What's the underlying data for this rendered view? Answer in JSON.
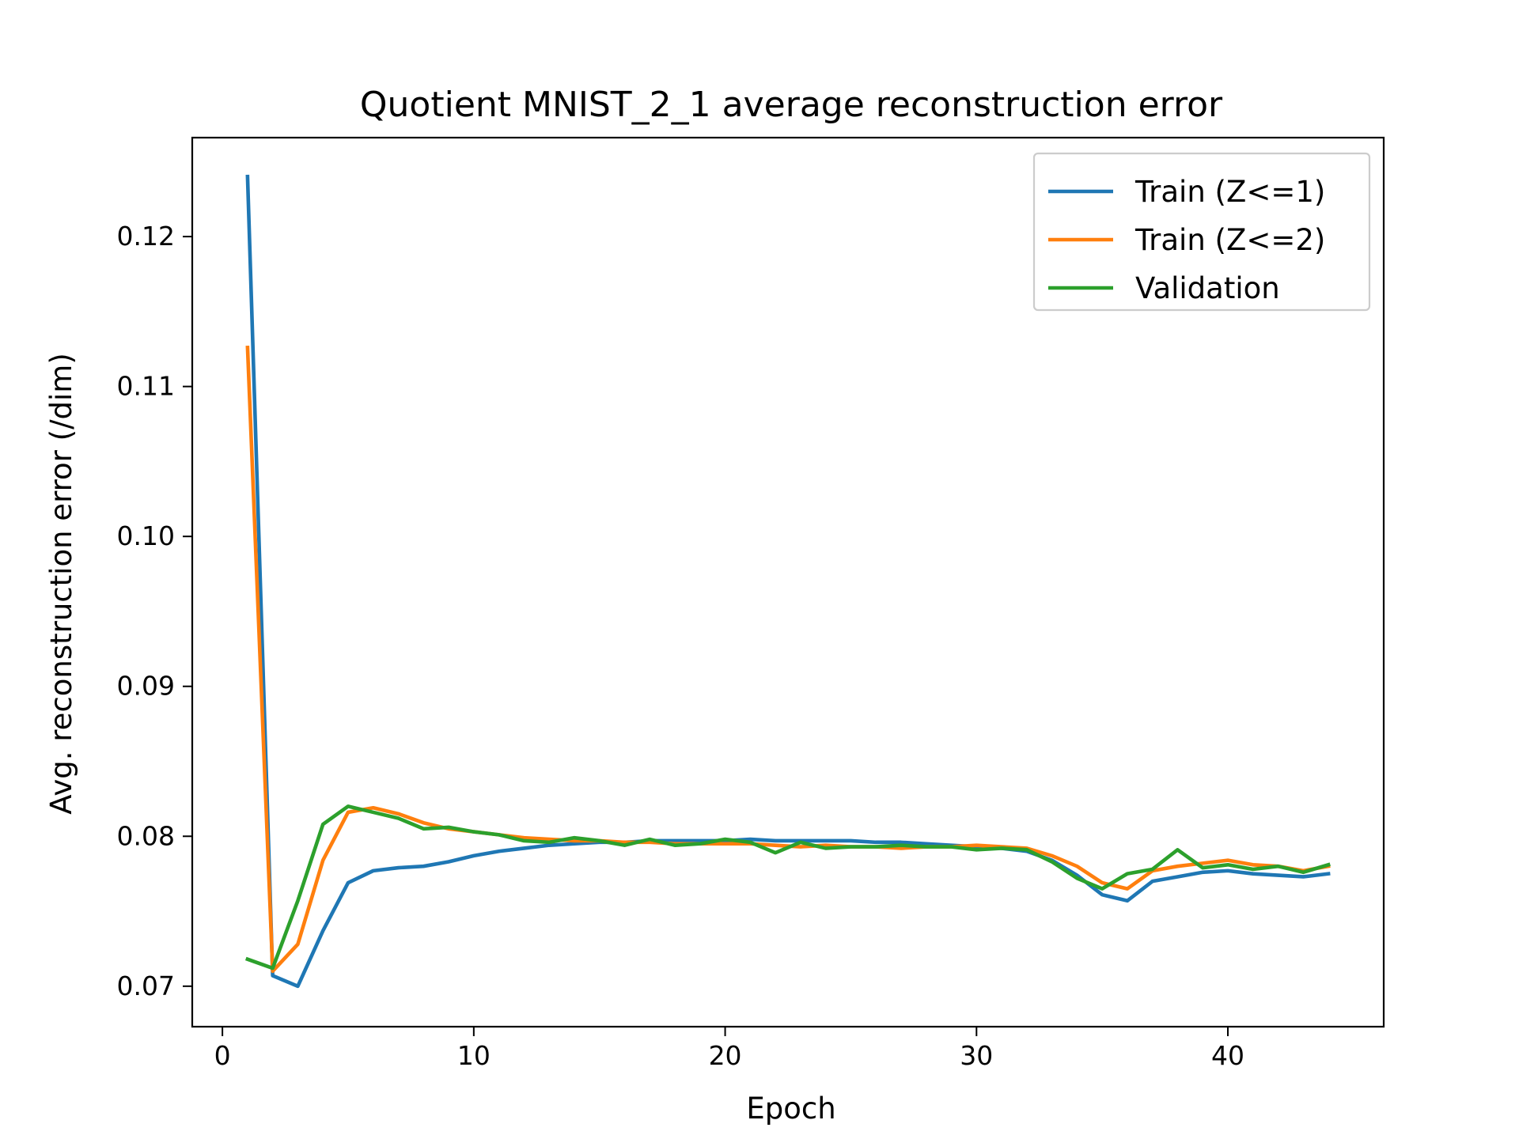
{
  "chart_data": {
    "type": "line",
    "title": "Quotient MNIST_2_1 average reconstruction error",
    "xlabel": "Epoch",
    "ylabel": "Avg. reconstruction error (/dim)",
    "xlim": [
      -1.2,
      46.2
    ],
    "ylim": [
      0.0673,
      0.1266
    ],
    "xticks": [
      0,
      10,
      20,
      30,
      40
    ],
    "xtick_labels": [
      "0",
      "10",
      "20",
      "30",
      "40"
    ],
    "yticks": [
      0.07,
      0.08,
      0.09,
      0.1,
      0.11,
      0.12
    ],
    "ytick_labels": [
      "0.07",
      "0.08",
      "0.09",
      "0.10",
      "0.11",
      "0.12"
    ],
    "grid": false,
    "legend_position": "top-right",
    "x": [
      1,
      2,
      3,
      4,
      5,
      6,
      7,
      8,
      9,
      10,
      11,
      12,
      13,
      14,
      15,
      16,
      17,
      18,
      19,
      20,
      21,
      22,
      23,
      24,
      25,
      26,
      27,
      28,
      29,
      30,
      31,
      32,
      33,
      34,
      35,
      36,
      37,
      38,
      39,
      40,
      41,
      42,
      43,
      44
    ],
    "series": [
      {
        "name": "Train (Z<=1)",
        "color": "#1f77b4",
        "values": [
          0.124,
          0.0707,
          0.07,
          0.0737,
          0.0769,
          0.0777,
          0.0779,
          0.078,
          0.0783,
          0.0787,
          0.079,
          0.0792,
          0.0794,
          0.0795,
          0.0796,
          0.0796,
          0.0797,
          0.0797,
          0.0797,
          0.0797,
          0.0798,
          0.0797,
          0.0797,
          0.0797,
          0.0797,
          0.0796,
          0.0796,
          0.0795,
          0.0794,
          0.0793,
          0.0792,
          0.079,
          0.0784,
          0.0774,
          0.0761,
          0.0757,
          0.077,
          0.0773,
          0.0776,
          0.0777,
          0.0775,
          0.0774,
          0.0773,
          0.0775
        ]
      },
      {
        "name": "Train (Z<=2)",
        "color": "#ff7f0e",
        "values": [
          0.1126,
          0.071,
          0.0728,
          0.0784,
          0.0816,
          0.0819,
          0.0815,
          0.0809,
          0.0805,
          0.0803,
          0.0801,
          0.0799,
          0.0798,
          0.0797,
          0.0797,
          0.0796,
          0.0796,
          0.0795,
          0.0795,
          0.0795,
          0.0795,
          0.0794,
          0.0793,
          0.0794,
          0.0793,
          0.0793,
          0.0792,
          0.0793,
          0.0793,
          0.0794,
          0.0793,
          0.0792,
          0.0787,
          0.078,
          0.0769,
          0.0765,
          0.0777,
          0.078,
          0.0782,
          0.0784,
          0.0781,
          0.078,
          0.0777,
          0.078
        ]
      },
      {
        "name": "Validation",
        "color": "#2ca02c",
        "values": [
          0.0718,
          0.0712,
          0.0757,
          0.0808,
          0.082,
          0.0816,
          0.0812,
          0.0805,
          0.0806,
          0.0803,
          0.0801,
          0.0797,
          0.0796,
          0.0799,
          0.0797,
          0.0794,
          0.0798,
          0.0794,
          0.0795,
          0.0798,
          0.0796,
          0.0789,
          0.0796,
          0.0792,
          0.0793,
          0.0793,
          0.0794,
          0.0793,
          0.0793,
          0.0791,
          0.0792,
          0.0791,
          0.0783,
          0.0772,
          0.0765,
          0.0775,
          0.0778,
          0.0791,
          0.0779,
          0.0781,
          0.0778,
          0.078,
          0.0776,
          0.0781
        ]
      }
    ]
  }
}
